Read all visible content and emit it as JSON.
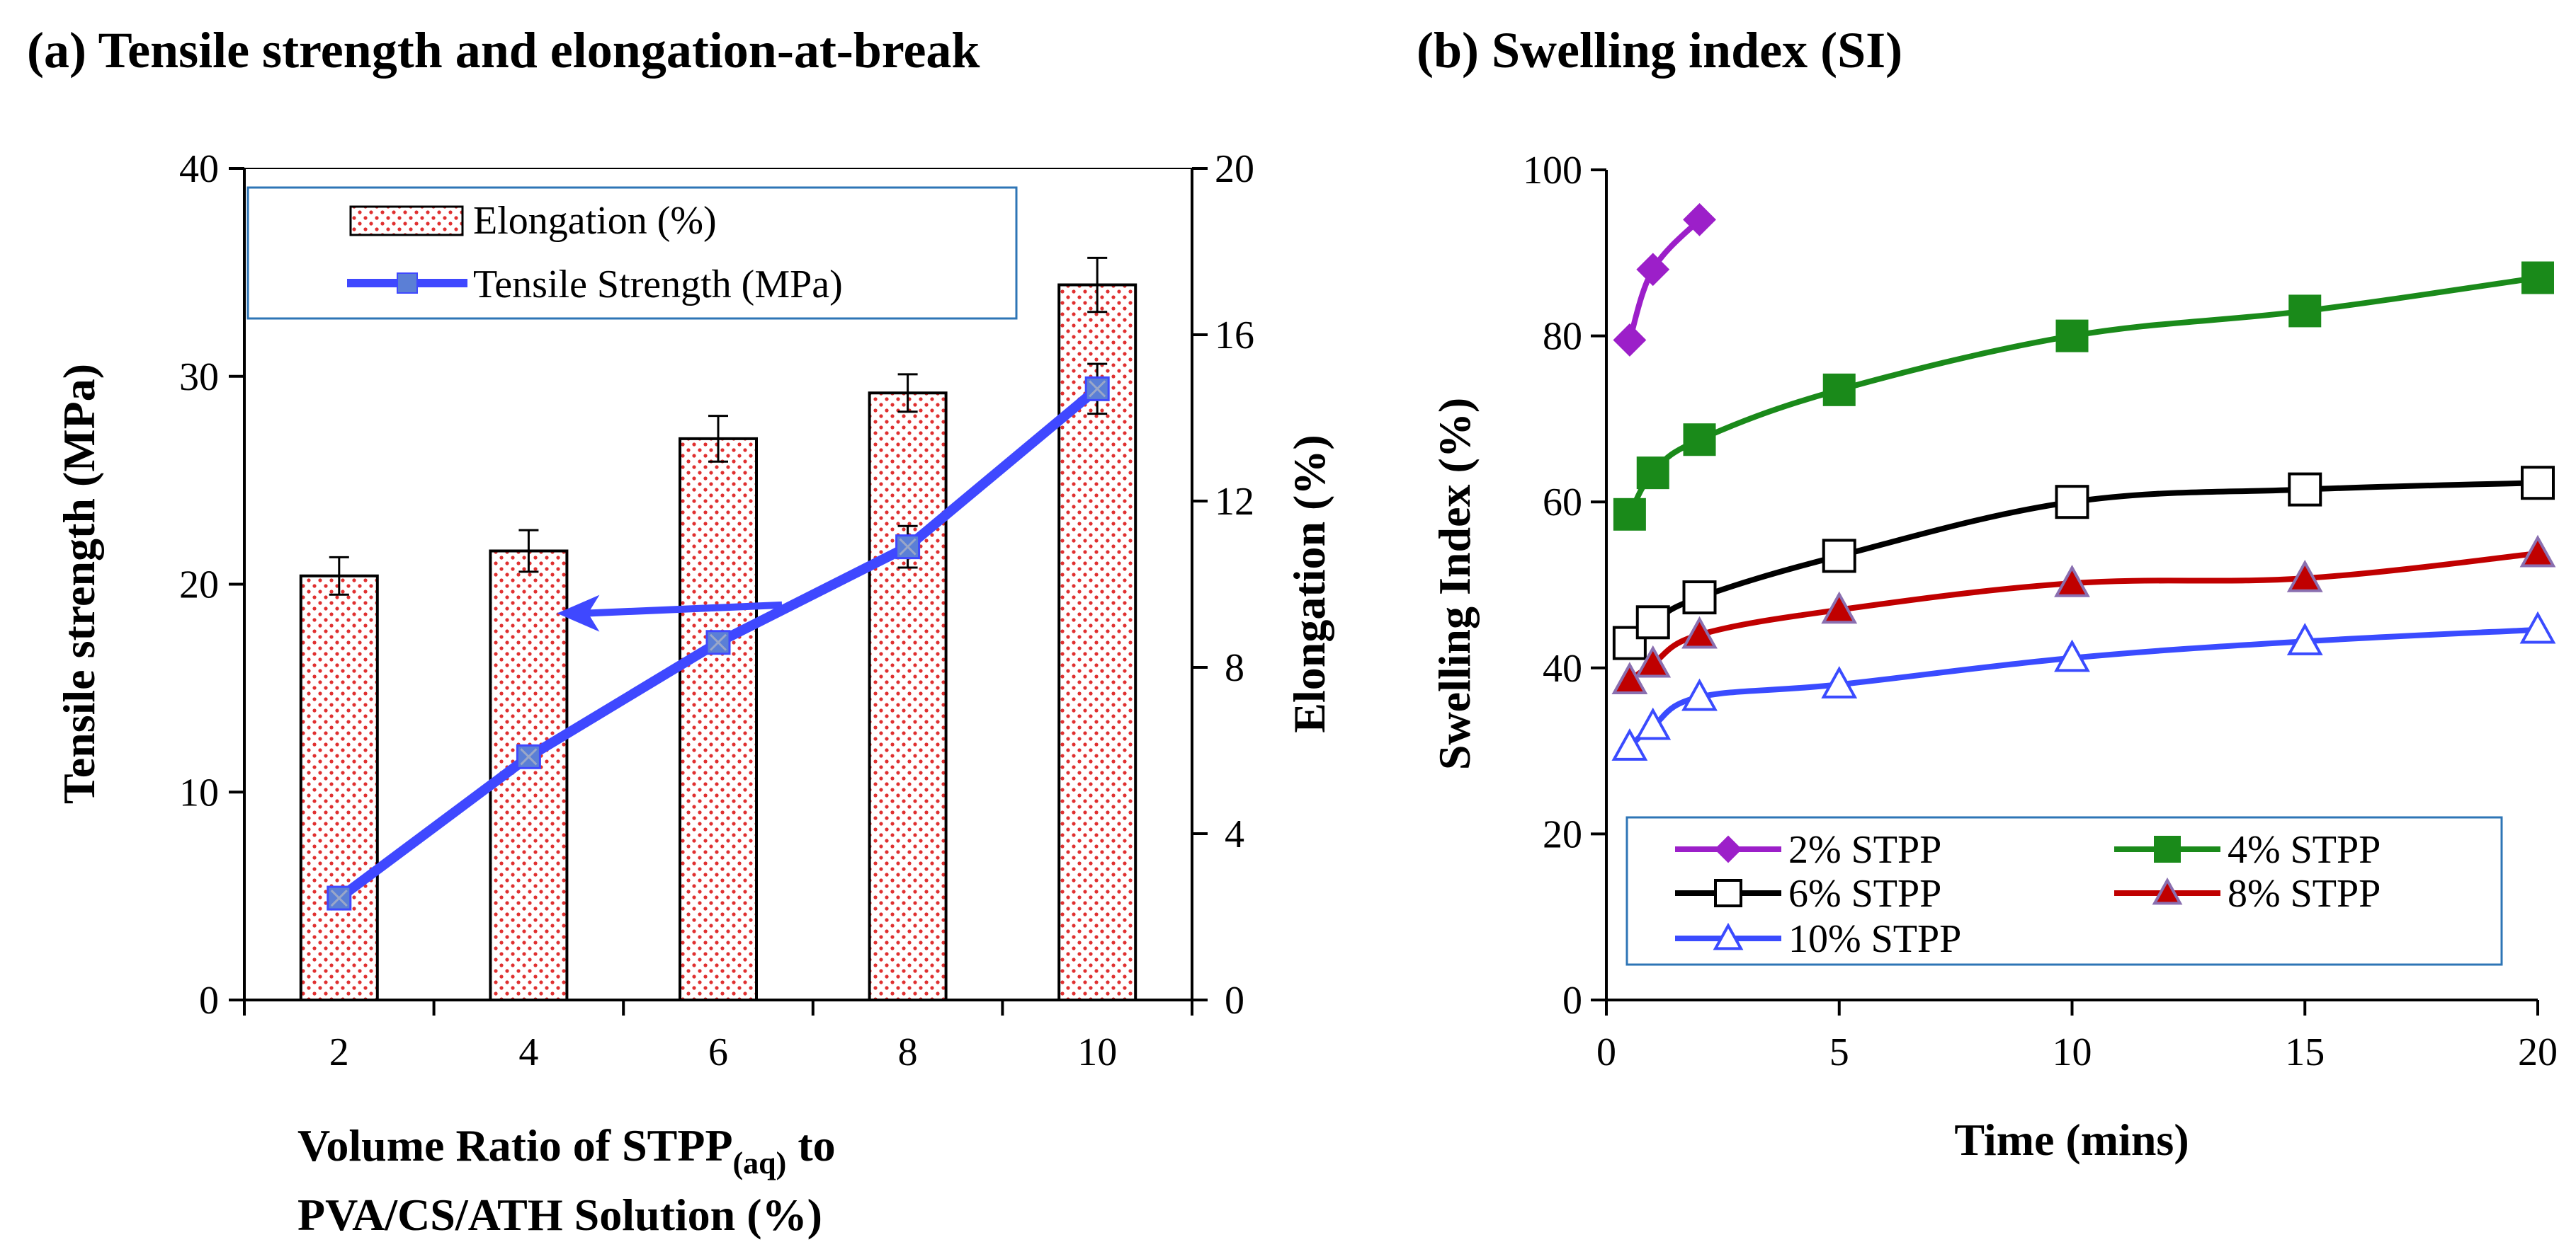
{
  "figure": {
    "panel_a_title": "(a) Tensile strength and elongation-at-break",
    "panel_b_title": "(b) Swelling index (SI)"
  },
  "chart_data": [
    {
      "type": "bar",
      "title": "(a) Tensile strength and elongation-at-break",
      "categories": [
        "2",
        "4",
        "6",
        "8",
        "10"
      ],
      "xlabel_main": "Volume Ratio of STPP",
      "xlabel_sub": "(aq)",
      "xlabel_tail": " to",
      "xlabel_line2": "PVA/CS/ATH Solution (%)",
      "ylabel_left": "Tensile strength (MPa)",
      "ylabel_right": "Elongation (%)",
      "ylim_left": [
        0,
        40
      ],
      "yticks_left": [
        "0",
        "10",
        "20",
        "30",
        "40"
      ],
      "ylim_right": [
        0,
        20
      ],
      "yticks_right": [
        "0",
        "4",
        "8",
        "12",
        "16",
        "20"
      ],
      "legend_position": "top-left",
      "series": [
        {
          "name": "Elongation (%)",
          "kind": "bar",
          "axis": "right",
          "values": [
            10.2,
            10.8,
            13.5,
            14.6,
            17.2
          ],
          "errors": [
            0.45,
            0.5,
            0.55,
            0.45,
            0.65
          ],
          "color": "#c00000"
        },
        {
          "name": "Tensile Strength (MPa)",
          "kind": "line",
          "axis": "left",
          "values": [
            4.9,
            11.7,
            17.2,
            21.8,
            29.4
          ],
          "errors": [
            0.0,
            0.0,
            0.0,
            1.0,
            1.2
          ],
          "color": "#3f48ff",
          "marker_color": "#5b7fd6"
        }
      ],
      "annotation_arrow": {
        "from": {
          "x": 5.0,
          "y_left": 19.0
        },
        "to": {
          "x": 4.05,
          "y_left": 18.6
        },
        "color": "#3f48ff"
      }
    },
    {
      "type": "line",
      "title": "(b) Swelling index (SI)",
      "xlabel": "Time (mins)",
      "ylabel": "Swelling Index (%)",
      "xlim": [
        0,
        20
      ],
      "xticks": [
        "0",
        "5",
        "10",
        "15",
        "20"
      ],
      "ylim": [
        0,
        100
      ],
      "yticks": [
        "0",
        "20",
        "40",
        "60",
        "80",
        "100"
      ],
      "legend_position": "bottom",
      "series": [
        {
          "name": "2% STPP",
          "marker": "diamond",
          "color": "#9c1fc9",
          "x": [
            0.5,
            1,
            2
          ],
          "y": [
            79.5,
            88,
            94
          ]
        },
        {
          "name": "4% STPP",
          "marker": "square-filled",
          "color": "#1a8a1a",
          "x": [
            0.5,
            1,
            2,
            5,
            10,
            15,
            20
          ],
          "y": [
            58.5,
            63.5,
            67.5,
            73.5,
            80,
            83,
            87
          ]
        },
        {
          "name": "6% STPP",
          "marker": "square-open",
          "color": "#000000",
          "x": [
            0.5,
            1,
            2,
            5,
            10,
            15,
            20
          ],
          "y": [
            43,
            45.5,
            48.5,
            53.5,
            60,
            61.5,
            62.3
          ]
        },
        {
          "name": "8% STPP",
          "marker": "triangle-filled",
          "color": "#c00000",
          "marker_edge": "#8a6fb0",
          "x": [
            0.5,
            1,
            2,
            5,
            10,
            15,
            20
          ],
          "y": [
            38.5,
            40.5,
            44,
            47,
            50.2,
            50.8,
            53.8
          ]
        },
        {
          "name": "10% STPP",
          "marker": "triangle-open",
          "color": "#3a4bff",
          "x": [
            0.5,
            1,
            2,
            5,
            10,
            15,
            20
          ],
          "y": [
            30.5,
            33,
            36.5,
            38,
            41.2,
            43.2,
            44.6
          ]
        }
      ]
    }
  ]
}
